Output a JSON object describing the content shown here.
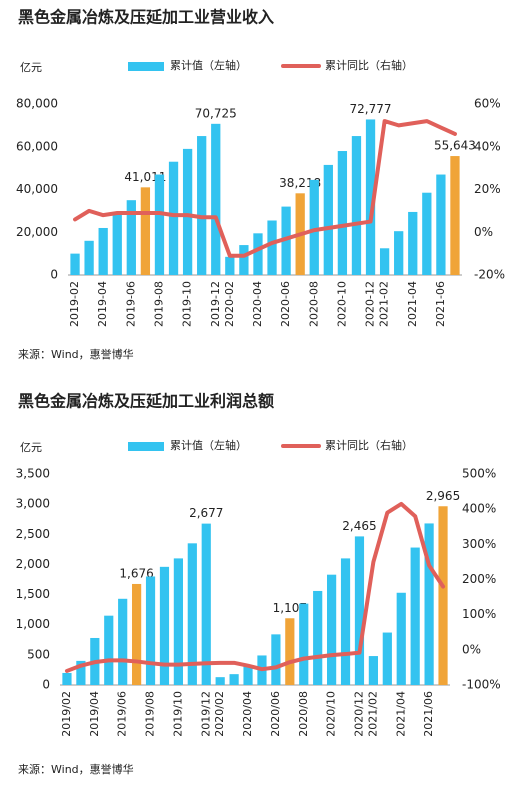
{
  "chart_data": [
    {
      "type": "bar-line",
      "title": "黑色金属冶炼及压延加工业营业收入",
      "unit_label": "亿元",
      "source": "来源：Wind，惠誉博华",
      "categories": [
        "2019-02",
        null,
        "2019-04",
        null,
        "2019-06",
        null,
        "2019-08",
        null,
        "2019-10",
        null,
        "2019-12",
        "2020-02",
        null,
        "2020-04",
        null,
        "2020-06",
        null,
        "2020-08",
        null,
        "2020-10",
        null,
        "2020-12",
        "2021-02",
        null,
        "2021-04",
        null,
        "2021-06",
        null
      ],
      "series": [
        {
          "name": "累计值（左轴）",
          "type": "bar",
          "color": "#33c3f0",
          "bar_colors": [
            "#33c3f0",
            "#33c3f0",
            "#33c3f0",
            "#33c3f0",
            "#33c3f0",
            "#f0a438",
            "#33c3f0",
            "#33c3f0",
            "#33c3f0",
            "#33c3f0",
            "#33c3f0",
            "#33c3f0",
            "#33c3f0",
            "#33c3f0",
            "#33c3f0",
            "#33c3f0",
            "#f0a438",
            "#33c3f0",
            "#33c3f0",
            "#33c3f0",
            "#33c3f0",
            "#33c3f0",
            "#33c3f0",
            "#33c3f0",
            "#33c3f0",
            "#33c3f0",
            "#33c3f0",
            "#f0a438"
          ],
          "values": [
            10000,
            16000,
            22000,
            28500,
            35000,
            41011,
            47000,
            53000,
            59000,
            65000,
            70725,
            8500,
            14000,
            19500,
            25500,
            32000,
            38218,
            44500,
            51500,
            58000,
            65000,
            72777,
            12500,
            20500,
            29500,
            38500,
            47000,
            55643
          ],
          "value_labels": [
            null,
            null,
            null,
            null,
            null,
            "41,011",
            null,
            null,
            null,
            null,
            "70,725",
            null,
            null,
            null,
            null,
            null,
            "38,218",
            null,
            null,
            null,
            null,
            "72,777",
            null,
            null,
            null,
            null,
            null,
            "55,643"
          ]
        },
        {
          "name": "累计同比（右轴）",
          "type": "line",
          "axis": "y2",
          "color": "#e0605a",
          "values": [
            6,
            10,
            8,
            9,
            9,
            9,
            9,
            8,
            8,
            7,
            7,
            -11,
            -11,
            -8,
            -5,
            -3,
            -1,
            1,
            2,
            3,
            4,
            5,
            52,
            50,
            51,
            52,
            49,
            46
          ]
        }
      ],
      "ylim": [
        0,
        80000
      ],
      "yticks": [
        0,
        {
          "value": 20000,
          "label": "20,000"
        },
        {
          "value": 40000,
          "label": "40,000"
        },
        {
          "value": 60000,
          "label": "60,000"
        },
        {
          "value": 80000,
          "label": "80,000"
        }
      ],
      "y2lim": [
        -20,
        60
      ],
      "y2ticks": [
        {
          "value": -20,
          "label": "-20%"
        },
        {
          "value": 0,
          "label": "0%"
        },
        {
          "value": 20,
          "label": "20%"
        },
        {
          "value": 40,
          "label": "40%"
        },
        {
          "value": 60,
          "label": "60%"
        }
      ]
    },
    {
      "type": "bar-line",
      "title": "黑色金属冶炼及压延加工业利润总额",
      "unit_label": "亿元",
      "source": "来源：Wind，惠誉博华",
      "categories": [
        "2019/02",
        null,
        "2019/04",
        null,
        "2019/06",
        null,
        "2019/08",
        null,
        "2019/10",
        null,
        "2019/12",
        "2020/02",
        null,
        "2020/04",
        null,
        "2020/06",
        null,
        "2020/08",
        null,
        "2020/10",
        null,
        "2020/12",
        "2021/02",
        null,
        "2021/04",
        null,
        "2021/06",
        null
      ],
      "series": [
        {
          "name": "累计值（左轴）",
          "type": "bar",
          "color": "#33c3f0",
          "bar_colors": [
            "#33c3f0",
            "#33c3f0",
            "#33c3f0",
            "#33c3f0",
            "#33c3f0",
            "#f0a438",
            "#33c3f0",
            "#33c3f0",
            "#33c3f0",
            "#33c3f0",
            "#33c3f0",
            "#33c3f0",
            "#33c3f0",
            "#33c3f0",
            "#33c3f0",
            "#33c3f0",
            "#f0a438",
            "#33c3f0",
            "#33c3f0",
            "#33c3f0",
            "#33c3f0",
            "#33c3f0",
            "#33c3f0",
            "#33c3f0",
            "#33c3f0",
            "#33c3f0",
            "#33c3f0",
            "#f0a438"
          ],
          "values": [
            200,
            400,
            780,
            1150,
            1430,
            1676,
            1800,
            1960,
            2100,
            2350,
            2677,
            130,
            180,
            310,
            490,
            840,
            1107,
            1350,
            1560,
            1830,
            2100,
            2465,
            480,
            870,
            1530,
            2280,
            2680,
            2965
          ],
          "value_labels": [
            null,
            null,
            null,
            null,
            null,
            "1,676",
            null,
            null,
            null,
            null,
            "2,677",
            null,
            null,
            null,
            null,
            null,
            "1,107",
            null,
            null,
            null,
            null,
            "2,465",
            null,
            null,
            null,
            null,
            null,
            "2,965"
          ]
        },
        {
          "name": "累计同比（右轴）",
          "type": "line",
          "axis": "y2",
          "color": "#e0605a",
          "values": [
            -60,
            -45,
            -35,
            -30,
            -30,
            -33,
            -38,
            -42,
            -42,
            -40,
            -38,
            -37,
            -37,
            -45,
            -55,
            -50,
            -35,
            -25,
            -20,
            -15,
            -12,
            -8,
            250,
            390,
            415,
            380,
            240,
            180
          ]
        }
      ],
      "ylim": [
        0,
        3500
      ],
      "yticks": [
        0,
        500,
        {
          "value": 1000,
          "label": "1,000"
        },
        {
          "value": 1500,
          "label": "1,500"
        },
        {
          "value": 2000,
          "label": "2,000"
        },
        {
          "value": 2500,
          "label": "2,500"
        },
        {
          "value": 3000,
          "label": "3,000"
        },
        {
          "value": 3500,
          "label": "3,500"
        }
      ],
      "y2lim": [
        -100,
        500
      ],
      "y2ticks": [
        {
          "value": -100,
          "label": "-100%"
        },
        {
          "value": 0,
          "label": "0%"
        },
        {
          "value": 100,
          "label": "100%"
        },
        {
          "value": 200,
          "label": "200%"
        },
        {
          "value": 300,
          "label": "300%"
        },
        {
          "value": 400,
          "label": "400%"
        },
        {
          "value": 500,
          "label": "500%"
        }
      ]
    }
  ]
}
